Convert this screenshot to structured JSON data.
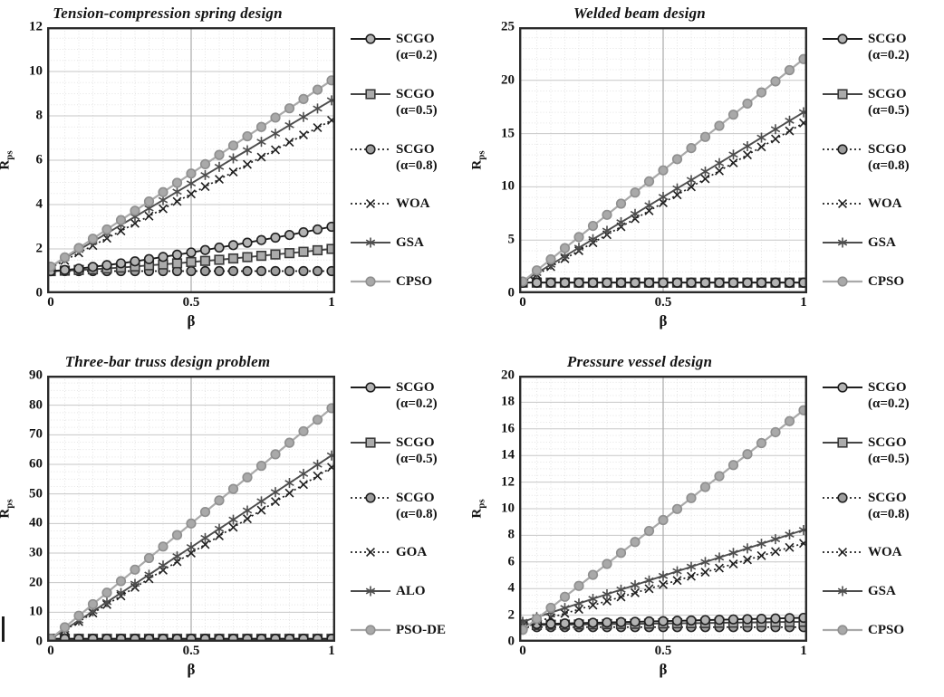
{
  "colors": {
    "background": "#ffffff",
    "text": "#141414",
    "plot_border": "#2a2a2a",
    "grid_minor": "#e4e4e4",
    "grid_major": "#c7c7c7",
    "grid_major_vertical": "#ababab"
  },
  "styles": {
    "scgo02": {
      "line": "solid",
      "line_color": "#1f1f1f",
      "line_width": 1.9,
      "marker": "circle",
      "marker_fill": "#b3b3b3",
      "marker_stroke": "#1f1f1f"
    },
    "scgo05": {
      "line": "solid",
      "line_color": "#454545",
      "line_width": 1.9,
      "marker": "square",
      "marker_fill": "#ababab",
      "marker_stroke": "#383838"
    },
    "scgo08": {
      "line": "dotted",
      "line_color": "#1f1f1f",
      "line_width": 1.7,
      "marker": "circle",
      "marker_fill": "#9e9e9e",
      "marker_stroke": "#1f1f1f"
    },
    "xcross": {
      "line": "dotted",
      "line_color": "#1f1f1f",
      "line_width": 1.7,
      "marker": "x",
      "marker_stroke": "#1f1f1f"
    },
    "asterisk": {
      "line": "solid",
      "line_color": "#4d4d4d",
      "line_width": 1.9,
      "marker": "asterisk",
      "marker_stroke": "#4d4d4d"
    },
    "graydot": {
      "line": "solid",
      "line_color": "#a9a9a9",
      "line_width": 2.2,
      "marker": "dot",
      "marker_fill": "#a9a9a9",
      "marker_stroke": "#8f8f8f"
    }
  },
  "chart_data": [
    {
      "type": "line",
      "title": "Tension-compression spring design",
      "xlabel": "β",
      "ylabel_base": "R",
      "ylabel_sub": "ps",
      "x_ticks": [
        "0",
        "0.5",
        "1"
      ],
      "y_ticks": [
        "0",
        "2",
        "4",
        "6",
        "8",
        "10",
        "12"
      ],
      "xlim": [
        0,
        1
      ],
      "ylim": [
        0,
        12
      ],
      "y_major": 2,
      "y_minor": 0.5,
      "grid": true,
      "legend_position": "right",
      "draw_order": [
        2,
        1,
        0,
        3,
        4,
        5
      ],
      "x": [
        0,
        0.05,
        0.1,
        0.15,
        0.2,
        0.25,
        0.3,
        0.35,
        0.4,
        0.45,
        0.5,
        0.55,
        0.6,
        0.65,
        0.7,
        0.75,
        0.8,
        0.85,
        0.9,
        0.95,
        1
      ],
      "series": [
        {
          "id": "scgo-a02",
          "label": "SCGO",
          "sublabel": "(α=0.2)",
          "style": "scgo02",
          "values": [
            1,
            1.05,
            1.11,
            1.19,
            1.27,
            1.35,
            1.44,
            1.54,
            1.64,
            1.74,
            1.84,
            1.95,
            2.06,
            2.17,
            2.28,
            2.4,
            2.51,
            2.63,
            2.75,
            2.88,
            3
          ]
        },
        {
          "id": "scgo-a05",
          "label": "SCGO",
          "sublabel": "(α=0.5)",
          "style": "scgo05",
          "values": [
            1,
            1.02,
            1.05,
            1.08,
            1.12,
            1.16,
            1.21,
            1.26,
            1.3,
            1.35,
            1.41,
            1.46,
            1.51,
            1.57,
            1.63,
            1.69,
            1.75,
            1.81,
            1.87,
            1.94,
            2
          ]
        },
        {
          "id": "scgo-a08",
          "label": "SCGO",
          "sublabel": "(α=0.8)",
          "style": "scgo08",
          "values": [
            1,
            1,
            1,
            1,
            1,
            1,
            1,
            1,
            1,
            1,
            1,
            1,
            1,
            1,
            1,
            1,
            1,
            1,
            1,
            1,
            1
          ]
        },
        {
          "id": "woa",
          "label": "WOA",
          "style": "xcross",
          "values": [
            1.15,
            1.48,
            1.82,
            2.15,
            2.48,
            2.81,
            3.15,
            3.48,
            3.81,
            4.14,
            4.48,
            4.81,
            5.14,
            5.47,
            5.81,
            6.14,
            6.47,
            6.81,
            7.14,
            7.47,
            7.8
          ]
        },
        {
          "id": "gsa",
          "label": "GSA",
          "style": "asterisk",
          "values": [
            1.2,
            1.58,
            1.95,
            2.33,
            2.7,
            3.08,
            3.45,
            3.83,
            4.2,
            4.58,
            4.95,
            5.33,
            5.7,
            6.08,
            6.45,
            6.83,
            7.2,
            7.58,
            7.95,
            8.33,
            8.7
          ]
        },
        {
          "id": "cpso",
          "label": "CPSO",
          "style": "graydot",
          "values": [
            1.2,
            1.62,
            2.04,
            2.46,
            2.88,
            3.3,
            3.72,
            4.14,
            4.56,
            4.98,
            5.4,
            5.82,
            6.24,
            6.66,
            7.08,
            7.5,
            7.92,
            8.34,
            8.76,
            9.18,
            9.6
          ]
        }
      ]
    },
    {
      "type": "line",
      "title": "Welded beam design",
      "xlabel": "β",
      "ylabel_base": "R",
      "ylabel_sub": "ps",
      "x_ticks": [
        "0",
        "0.5",
        "1"
      ],
      "y_ticks": [
        "0",
        "5",
        "10",
        "15",
        "20",
        "25"
      ],
      "xlim": [
        0,
        1
      ],
      "ylim": [
        0,
        25
      ],
      "y_major": 5,
      "y_minor": 1,
      "grid": true,
      "legend_position": "right",
      "draw_order": [
        2,
        1,
        0,
        3,
        4,
        5
      ],
      "x": [
        0,
        0.05,
        0.1,
        0.15,
        0.2,
        0.25,
        0.3,
        0.35,
        0.4,
        0.45,
        0.5,
        0.55,
        0.6,
        0.65,
        0.7,
        0.75,
        0.8,
        0.85,
        0.9,
        0.95,
        1
      ],
      "series": [
        {
          "id": "scgo-a02",
          "label": "SCGO",
          "sublabel": "(α=0.2)",
          "style": "scgo02",
          "values": [
            1,
            1,
            1,
            1,
            1,
            1,
            1,
            1,
            1,
            1,
            1,
            1,
            1,
            1,
            1,
            1,
            1,
            1,
            1,
            1,
            1
          ]
        },
        {
          "id": "scgo-a05",
          "label": "SCGO",
          "sublabel": "(α=0.5)",
          "style": "scgo05",
          "values": [
            1,
            1,
            1,
            1,
            1,
            1,
            1,
            1,
            1,
            1,
            1,
            1,
            1,
            1,
            1,
            1,
            1,
            1,
            1,
            1,
            1
          ]
        },
        {
          "id": "scgo-a08",
          "label": "SCGO",
          "sublabel": "(α=0.8)",
          "style": "scgo08",
          "values": [
            1,
            1,
            1,
            1,
            1,
            1,
            1,
            1,
            1,
            1,
            1,
            1,
            1,
            1,
            1,
            1,
            1,
            1,
            1,
            1,
            1
          ]
        },
        {
          "id": "woa",
          "label": "WOA",
          "style": "xcross",
          "values": [
            1,
            1.75,
            2.5,
            3.25,
            4,
            4.75,
            5.5,
            6.25,
            7,
            7.75,
            8.5,
            9.25,
            10,
            10.75,
            11.5,
            12.25,
            13,
            13.75,
            14.5,
            15.25,
            16
          ]
        },
        {
          "id": "gsa",
          "label": "GSA",
          "style": "asterisk",
          "values": [
            1.1,
            1.9,
            2.69,
            3.49,
            4.28,
            5.08,
            5.87,
            6.67,
            7.46,
            8.26,
            9.05,
            9.85,
            10.64,
            11.44,
            12.23,
            13.03,
            13.82,
            14.62,
            15.41,
            16.21,
            17
          ]
        },
        {
          "id": "cpso",
          "label": "CPSO",
          "style": "graydot",
          "values": [
            1.1,
            2.15,
            3.19,
            4.24,
            5.28,
            6.33,
            7.37,
            8.42,
            9.46,
            10.51,
            11.55,
            12.6,
            13.64,
            14.69,
            15.73,
            16.78,
            17.82,
            18.87,
            19.91,
            20.96,
            22
          ]
        }
      ]
    },
    {
      "type": "line",
      "title": "Three-bar truss design problem",
      "xlabel": "β",
      "ylabel_base": "R",
      "ylabel_sub": "ps",
      "x_ticks": [
        "0",
        "0.5",
        "1"
      ],
      "y_ticks": [
        "0",
        "10",
        "20",
        "30",
        "40",
        "50",
        "60",
        "70",
        "80",
        "90"
      ],
      "xlim": [
        0,
        1
      ],
      "ylim": [
        0,
        90
      ],
      "y_major": 10,
      "y_minor": 2.5,
      "grid": true,
      "legend_position": "right",
      "draw_order": [
        2,
        1,
        0,
        3,
        4,
        5
      ],
      "x": [
        0,
        0.05,
        0.1,
        0.15,
        0.2,
        0.25,
        0.3,
        0.35,
        0.4,
        0.45,
        0.5,
        0.55,
        0.6,
        0.65,
        0.7,
        0.75,
        0.8,
        0.85,
        0.9,
        0.95,
        1
      ],
      "series": [
        {
          "id": "scgo-a02",
          "label": "SCGO",
          "sublabel": "(α=0.2)",
          "style": "scgo02",
          "values": [
            1,
            1,
            1,
            1,
            1,
            1,
            1,
            1,
            1,
            1,
            1,
            1,
            1,
            1,
            1,
            1,
            1,
            1,
            1,
            1,
            1
          ]
        },
        {
          "id": "scgo-a05",
          "label": "SCGO",
          "sublabel": "(α=0.5)",
          "style": "scgo05",
          "values": [
            1,
            1,
            1,
            1,
            1,
            1,
            1,
            1,
            1,
            1,
            1,
            1,
            1,
            1,
            1,
            1,
            1,
            1,
            1,
            1,
            1
          ]
        },
        {
          "id": "scgo-a08",
          "label": "SCGO",
          "sublabel": "(α=0.8)",
          "style": "scgo08",
          "values": [
            1,
            1,
            1,
            1,
            1,
            1,
            1,
            1,
            1,
            1,
            1,
            1,
            1,
            1,
            1,
            1,
            1,
            1,
            1,
            1,
            1
          ]
        },
        {
          "id": "goa",
          "label": "GOA",
          "style": "xcross",
          "values": [
            1,
            3.9,
            6.8,
            9.7,
            12.6,
            15.5,
            18.4,
            21.3,
            24.2,
            27.1,
            30,
            32.9,
            35.8,
            38.7,
            41.6,
            44.5,
            47.4,
            50.3,
            53.2,
            56.1,
            59
          ]
        },
        {
          "id": "alo",
          "label": "ALO",
          "style": "asterisk",
          "values": [
            1,
            4.1,
            7.2,
            10.3,
            13.4,
            16.5,
            19.6,
            22.7,
            25.8,
            28.9,
            32,
            35.1,
            38.2,
            41.3,
            44.4,
            47.5,
            50.6,
            53.7,
            56.8,
            59.9,
            63
          ]
        },
        {
          "id": "pso-de",
          "label": "PSO-DE",
          "style": "graydot",
          "values": [
            1,
            4.9,
            8.8,
            12.7,
            16.6,
            20.5,
            24.4,
            28.3,
            32.2,
            36.1,
            40,
            43.9,
            47.8,
            51.7,
            55.6,
            59.5,
            63.4,
            67.3,
            71.2,
            75.1,
            79
          ]
        }
      ]
    },
    {
      "type": "line",
      "title": "Pressure vessel design",
      "xlabel": "β",
      "ylabel_base": "R",
      "ylabel_sub": "ps",
      "x_ticks": [
        "0",
        "0.5",
        "1"
      ],
      "y_ticks": [
        "0",
        "2",
        "4",
        "6",
        "8",
        "10",
        "12",
        "14",
        "16",
        "18",
        "20"
      ],
      "xlim": [
        0,
        1
      ],
      "ylim": [
        0,
        20
      ],
      "y_major": 2,
      "y_minor": 0.5,
      "grid": true,
      "legend_position": "right",
      "draw_order": [
        2,
        1,
        0,
        3,
        4,
        5
      ],
      "x": [
        0,
        0.05,
        0.1,
        0.15,
        0.2,
        0.25,
        0.3,
        0.35,
        0.4,
        0.45,
        0.5,
        0.55,
        0.6,
        0.65,
        0.7,
        0.75,
        0.8,
        0.85,
        0.9,
        0.95,
        1
      ],
      "series": [
        {
          "id": "scgo-a02",
          "label": "SCGO",
          "sublabel": "(α=0.2)",
          "style": "scgo02",
          "values": [
            1.3,
            1.33,
            1.35,
            1.38,
            1.4,
            1.43,
            1.45,
            1.48,
            1.5,
            1.53,
            1.55,
            1.58,
            1.6,
            1.63,
            1.65,
            1.68,
            1.7,
            1.73,
            1.75,
            1.78,
            1.8
          ]
        },
        {
          "id": "scgo-a05",
          "label": "SCGO",
          "sublabel": "(α=0.5)",
          "style": "scgo05",
          "values": [
            1.25,
            1.26,
            1.28,
            1.29,
            1.3,
            1.31,
            1.33,
            1.34,
            1.35,
            1.36,
            1.38,
            1.39,
            1.4,
            1.41,
            1.43,
            1.44,
            1.45,
            1.46,
            1.48,
            1.49,
            1.5
          ]
        },
        {
          "id": "scgo-a08",
          "label": "SCGO",
          "sublabel": "(α=0.8)",
          "style": "scgo08",
          "values": [
            1.1,
            1.1,
            1.1,
            1.1,
            1.1,
            1.1,
            1.1,
            1.1,
            1.1,
            1.1,
            1.1,
            1.1,
            1.1,
            1.1,
            1.1,
            1.1,
            1.1,
            1.1,
            1.1,
            1.1,
            1.1
          ]
        },
        {
          "id": "woa",
          "label": "WOA",
          "style": "xcross",
          "values": [
            1.2,
            1.51,
            1.82,
            2.13,
            2.44,
            2.75,
            3.06,
            3.37,
            3.68,
            3.99,
            4.3,
            4.61,
            4.92,
            5.23,
            5.54,
            5.85,
            6.16,
            6.47,
            6.78,
            7.09,
            7.4
          ]
        },
        {
          "id": "gsa",
          "label": "GSA",
          "style": "asterisk",
          "values": [
            1.5,
            1.85,
            2.19,
            2.54,
            2.88,
            3.23,
            3.57,
            3.92,
            4.26,
            4.61,
            4.95,
            5.3,
            5.64,
            5.99,
            6.33,
            6.68,
            7.02,
            7.37,
            7.71,
            8.06,
            8.4
          ]
        },
        {
          "id": "cpso",
          "label": "CPSO",
          "style": "graydot",
          "values": [
            0.9,
            1.73,
            2.55,
            3.38,
            4.2,
            5.03,
            5.85,
            6.68,
            7.5,
            8.33,
            9.15,
            9.98,
            10.8,
            11.63,
            12.45,
            13.28,
            14.1,
            14.93,
            15.75,
            16.58,
            17.4
          ]
        }
      ]
    }
  ]
}
